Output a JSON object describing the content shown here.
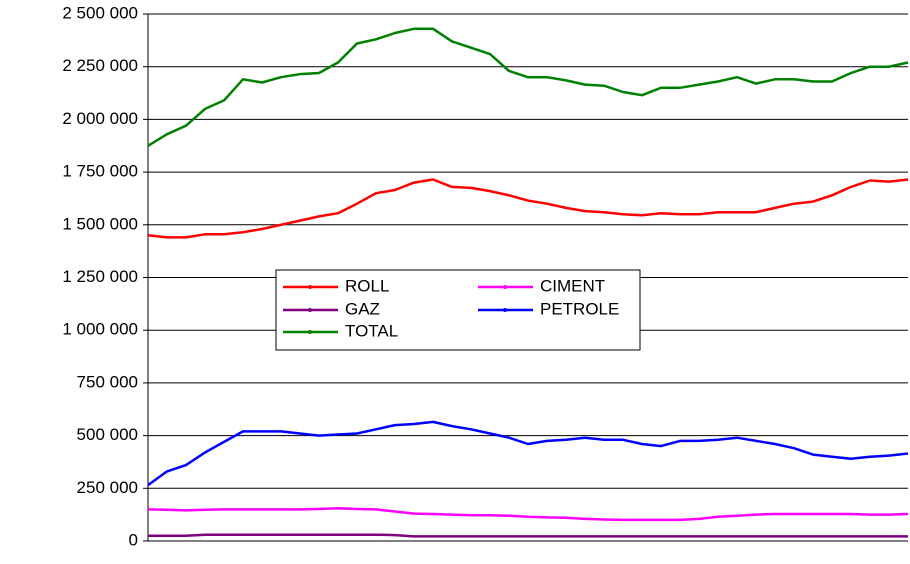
{
  "chart_data": {
    "type": "line",
    "ylim": [
      0,
      2500000
    ],
    "yticks": [
      0,
      {
        "value": 250000,
        "label": "250 000"
      },
      {
        "value": 500000,
        "label": "500 000"
      },
      {
        "value": 750000,
        "label": "750 000"
      },
      {
        "value": 1000000,
        "label": "1 000 000"
      },
      {
        "value": 1250000,
        "label": "1 250 000"
      },
      {
        "value": 1500000,
        "label": "1 500 000"
      },
      {
        "value": 1750000,
        "label": "1 750 000"
      },
      {
        "value": 2000000,
        "label": "2 000 000"
      },
      {
        "value": 2250000,
        "label": "2 250 000"
      },
      {
        "value": 2500000,
        "label": "2 500 000"
      }
    ],
    "grid": true,
    "series": [
      {
        "name": "ROLL",
        "color": "#ff0000",
        "values": [
          1450000,
          1440000,
          1440000,
          1455000,
          1455000,
          1465000,
          1480000,
          1500000,
          1520000,
          1540000,
          1555000,
          1600000,
          1650000,
          1665000,
          1700000,
          1715000,
          1680000,
          1675000,
          1660000,
          1640000,
          1615000,
          1600000,
          1580000,
          1565000,
          1560000,
          1550000,
          1545000,
          1555000,
          1550000,
          1550000,
          1560000,
          1560000,
          1560000,
          1580000,
          1600000,
          1610000,
          1640000,
          1680000,
          1710000,
          1705000,
          1715000
        ]
      },
      {
        "name": "CIMENT",
        "color": "#ff00ff",
        "values": [
          150000,
          148000,
          145000,
          148000,
          150000,
          150000,
          150000,
          150000,
          150000,
          152000,
          155000,
          152000,
          150000,
          140000,
          130000,
          128000,
          125000,
          122000,
          122000,
          120000,
          115000,
          112000,
          110000,
          105000,
          102000,
          100000,
          100000,
          100000,
          100000,
          105000,
          115000,
          120000,
          125000,
          128000,
          128000,
          128000,
          128000,
          128000,
          125000,
          125000,
          128000
        ]
      },
      {
        "name": "GAZ",
        "color": "#800080",
        "values": [
          25000,
          25000,
          25000,
          30000,
          30000,
          30000,
          30000,
          30000,
          30000,
          30000,
          30000,
          30000,
          30000,
          28000,
          22000,
          22000,
          22000,
          22000,
          22000,
          22000,
          22000,
          22000,
          22000,
          22000,
          22000,
          22000,
          22000,
          22000,
          22000,
          22000,
          22000,
          22000,
          22000,
          22000,
          22000,
          22000,
          22000,
          22000,
          22000,
          22000,
          22000
        ]
      },
      {
        "name": "PETROLE",
        "color": "#0000ff",
        "values": [
          265000,
          330000,
          360000,
          420000,
          470000,
          520000,
          520000,
          520000,
          510000,
          500000,
          505000,
          510000,
          530000,
          550000,
          555000,
          565000,
          545000,
          530000,
          510000,
          490000,
          460000,
          475000,
          480000,
          490000,
          480000,
          480000,
          460000,
          450000,
          475000,
          475000,
          480000,
          490000,
          475000,
          460000,
          440000,
          410000,
          400000,
          390000,
          400000,
          405000,
          415000
        ]
      },
      {
        "name": "TOTAL",
        "color": "#008000",
        "values": [
          1875000,
          1930000,
          1970000,
          2050000,
          2090000,
          2190000,
          2175000,
          2200000,
          2215000,
          2220000,
          2270000,
          2360000,
          2380000,
          2410000,
          2430000,
          2430000,
          2370000,
          2340000,
          2310000,
          2230000,
          2200000,
          2200000,
          2185000,
          2165000,
          2160000,
          2130000,
          2115000,
          2150000,
          2150000,
          2165000,
          2180000,
          2200000,
          2170000,
          2190000,
          2190000,
          2180000,
          2180000,
          2220000,
          2250000,
          2250000,
          2270000
        ]
      }
    ]
  }
}
